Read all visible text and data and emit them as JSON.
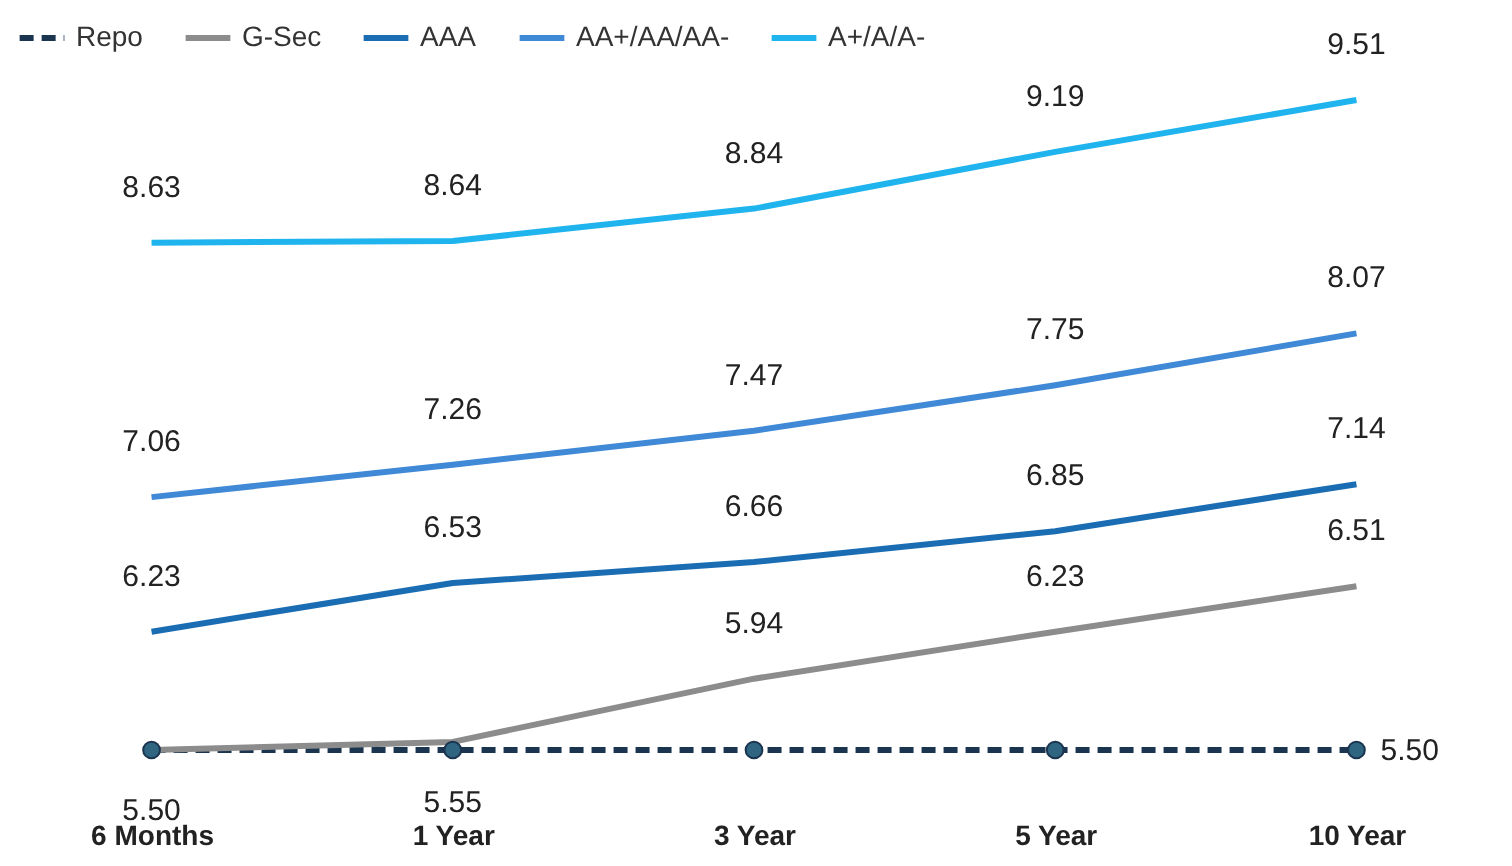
{
  "chart_data": {
    "type": "line",
    "categories": [
      "6 Months",
      "1 Year",
      "3 Year",
      "5 Year",
      "10 Year"
    ],
    "legend": "top",
    "series": [
      {
        "name": "Repo",
        "color": "#1b3550",
        "values": [
          5.5,
          5.5,
          5.5,
          5.5,
          5.5
        ],
        "line_style": "dashed",
        "marker": "circle",
        "value_labels": [
          null,
          null,
          null,
          null,
          "5.50"
        ]
      },
      {
        "name": "G-Sec",
        "color": "#8c8c8c",
        "values": [
          5.5,
          5.55,
          5.94,
          6.23,
          6.51
        ],
        "value_labels": [
          "5.50",
          "5.55",
          "5.94",
          "6.23",
          "6.51"
        ]
      },
      {
        "name": "AAA",
        "color": "#1a6db3",
        "values": [
          6.23,
          6.53,
          6.66,
          6.85,
          7.14
        ],
        "value_labels": [
          "6.23",
          "6.53",
          "6.66",
          "6.85",
          "7.14"
        ]
      },
      {
        "name": "AA+/AA/AA-",
        "color": "#3f89d6",
        "values": [
          7.06,
          7.26,
          7.47,
          7.75,
          8.07
        ],
        "value_labels": [
          "7.06",
          "7.26",
          "7.47",
          "7.75",
          "8.07"
        ]
      },
      {
        "name": "A+/A/A-",
        "color": "#1fb4ee",
        "values": [
          8.63,
          8.64,
          8.84,
          9.19,
          9.51
        ],
        "value_labels": [
          "8.63",
          "8.64",
          "8.84",
          "9.19",
          "9.51"
        ]
      }
    ]
  }
}
